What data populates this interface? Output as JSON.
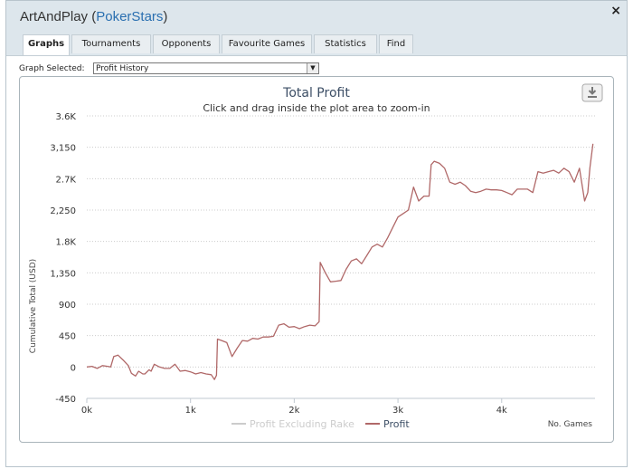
{
  "window": {
    "player_name": "ArtAndPlay",
    "site_name": "PokerStars",
    "close_glyph": "×"
  },
  "tabs": [
    {
      "label": "Graphs",
      "active": true
    },
    {
      "label": "Tournaments"
    },
    {
      "label": "Opponents"
    },
    {
      "label": "Favourite Games"
    },
    {
      "label": "Statistics"
    },
    {
      "label": "Find"
    }
  ],
  "graph_selector": {
    "label": "Graph Selected:",
    "value": "Profit History"
  },
  "colors": {
    "profit_line": "#b06868",
    "rake_legend": "#cccccc",
    "grid": "#cccccc",
    "title": "#3d4f66"
  },
  "chart_data": {
    "type": "line",
    "title": "Total Profit",
    "subtitle": "Click and drag inside the plot area to zoom-in",
    "xlabel": "No. Games",
    "ylabel": "Cumulative Total (USD)",
    "xlim": [
      0,
      4900
    ],
    "ylim": [
      -450,
      3600
    ],
    "x_ticks": [
      0,
      1000,
      2000,
      3000,
      4000
    ],
    "x_tick_labels": [
      "0k",
      "1k",
      "2k",
      "3k",
      "4k"
    ],
    "y_ticks": [
      -450,
      0,
      450,
      900,
      1350,
      1800,
      2250,
      2700,
      3150,
      3600
    ],
    "y_tick_labels": [
      "-450",
      "0",
      "450",
      "900",
      "1,350",
      "1.8K",
      "2,250",
      "2.7K",
      "3,150",
      "3.6K"
    ],
    "legend": [
      "Profit Excluding Rake",
      "Profit"
    ],
    "series": [
      {
        "name": "Profit",
        "x": [
          0,
          50,
          100,
          150,
          200,
          230,
          260,
          300,
          350,
          400,
          430,
          470,
          500,
          540,
          560,
          600,
          620,
          650,
          700,
          750,
          800,
          850,
          900,
          950,
          1000,
          1050,
          1100,
          1150,
          1200,
          1230,
          1250,
          1260,
          1300,
          1350,
          1400,
          1450,
          1500,
          1550,
          1600,
          1650,
          1700,
          1750,
          1800,
          1850,
          1900,
          1950,
          2000,
          2050,
          2100,
          2150,
          2200,
          2240,
          2250,
          2300,
          2350,
          2400,
          2450,
          2500,
          2550,
          2600,
          2650,
          2700,
          2750,
          2800,
          2850,
          2900,
          2950,
          3000,
          3050,
          3100,
          3150,
          3200,
          3250,
          3300,
          3320,
          3350,
          3400,
          3450,
          3500,
          3550,
          3600,
          3650,
          3700,
          3750,
          3800,
          3850,
          3900,
          3950,
          4000,
          4050,
          4100,
          4150,
          4200,
          4250,
          4300,
          4350,
          4400,
          4450,
          4500,
          4550,
          4600,
          4650,
          4700,
          4750,
          4800,
          4830,
          4850,
          4880
        ],
        "values": [
          0,
          10,
          -20,
          20,
          10,
          0,
          150,
          170,
          100,
          20,
          -90,
          -130,
          -60,
          -100,
          -100,
          -40,
          -60,
          40,
          0,
          -20,
          -20,
          40,
          -60,
          -50,
          -70,
          -100,
          -80,
          -100,
          -110,
          -180,
          -120,
          400,
          380,
          350,
          150,
          270,
          380,
          370,
          410,
          400,
          430,
          430,
          440,
          600,
          620,
          570,
          580,
          550,
          580,
          600,
          590,
          650,
          1500,
          1350,
          1220,
          1230,
          1240,
          1400,
          1520,
          1550,
          1480,
          1600,
          1720,
          1760,
          1720,
          1850,
          2000,
          2150,
          2200,
          2250,
          2580,
          2380,
          2450,
          2450,
          2900,
          2950,
          2920,
          2850,
          2650,
          2620,
          2650,
          2600,
          2520,
          2500,
          2520,
          2550,
          2540,
          2540,
          2530,
          2500,
          2470,
          2550,
          2550,
          2550,
          2500,
          2800,
          2780,
          2800,
          2820,
          2780,
          2850,
          2800,
          2650,
          2850,
          2380,
          2500,
          2850,
          3200
        ]
      }
    ]
  }
}
